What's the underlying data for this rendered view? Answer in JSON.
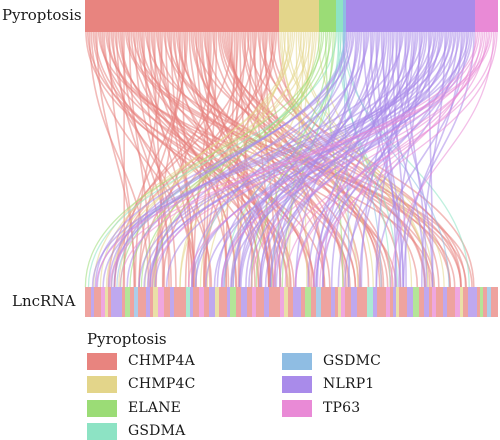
{
  "labels": {
    "top": "Pyroptosis",
    "bottom": "LncRNA"
  },
  "legend": {
    "title": "Pyroptosis",
    "items": [
      {
        "label": "CHMP4A",
        "color": "#e8847f"
      },
      {
        "label": "CHMP4C",
        "color": "#e3d58a"
      },
      {
        "label": "ELANE",
        "color": "#9bdc76"
      },
      {
        "label": "GSDMA",
        "color": "#8de3c4"
      },
      {
        "label": "GSDMC",
        "color": "#8fbde3"
      },
      {
        "label": "NLRP1",
        "color": "#a98bea"
      },
      {
        "label": "TP63",
        "color": "#e98ad6"
      }
    ]
  }
}
